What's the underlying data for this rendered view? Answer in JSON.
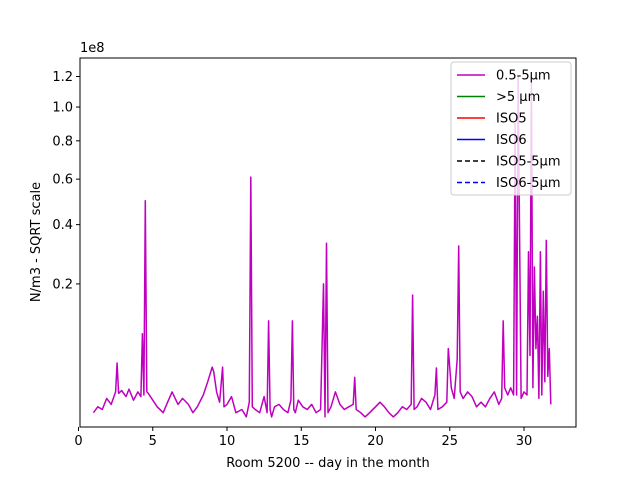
{
  "chart_data": {
    "type": "line",
    "title": "",
    "xlabel": "Room 5200 -- day in the month",
    "ylabel": "N/m3 - SQRT scale",
    "y_scale": "sqrt",
    "y_offset_label": "1e8",
    "xlim": [
      0.1,
      33.5
    ],
    "ylim": [
      0,
      1.33
    ],
    "x_ticks": [
      0,
      5,
      10,
      15,
      20,
      25,
      30
    ],
    "x_tick_labels": [
      "0",
      "5",
      "10",
      "15",
      "20",
      "25",
      "30"
    ],
    "y_ticks": [
      0.2,
      0.4,
      0.6,
      0.8,
      1.0,
      1.2
    ],
    "y_tick_labels": [
      "0.2",
      "0.4",
      "0.6",
      "0.8",
      "1.0",
      "1.2"
    ],
    "grid": false,
    "legend_position": "upper right",
    "colors": {
      "s1": "#bf00bf",
      "s2": "#008000",
      "s3": "#ff0000",
      "s4": "#0000ff",
      "s5": "#000000",
      "s6": "#0000ff"
    },
    "series": [
      {
        "name": "0.5-5µm",
        "color": "#bf00bf",
        "style": "solid",
        "x": [
          1.0,
          1.3,
          1.6,
          1.9,
          2.2,
          2.5,
          2.6,
          2.7,
          2.9,
          3.2,
          3.4,
          3.7,
          4.0,
          4.2,
          4.3,
          4.4,
          4.5,
          4.6,
          4.7,
          5.0,
          5.3,
          5.7,
          6.0,
          6.3,
          6.7,
          7.0,
          7.4,
          7.7,
          8.0,
          8.4,
          8.7,
          9.0,
          9.1,
          9.3,
          9.5,
          9.7,
          9.8,
          10.0,
          10.3,
          10.6,
          11.0,
          11.3,
          11.5,
          11.6,
          11.7,
          11.9,
          12.2,
          12.5,
          12.7,
          12.8,
          12.9,
          13.0,
          13.2,
          13.5,
          13.8,
          14.1,
          14.3,
          14.4,
          14.5,
          14.6,
          14.8,
          15.1,
          15.4,
          15.7,
          16.0,
          16.3,
          16.5,
          16.6,
          16.7,
          16.8,
          17.0,
          17.3,
          17.6,
          17.9,
          18.2,
          18.5,
          18.6,
          18.7,
          19.0,
          19.3,
          19.6,
          20.0,
          20.3,
          20.6,
          20.9,
          21.2,
          21.5,
          21.8,
          22.1,
          22.4,
          22.5,
          22.6,
          22.8,
          23.1,
          23.4,
          23.7,
          24.0,
          24.1,
          24.2,
          24.5,
          24.8,
          24.9,
          25.1,
          25.3,
          25.5,
          25.6,
          25.7,
          25.9,
          26.2,
          26.5,
          26.8,
          27.1,
          27.4,
          27.7,
          28.0,
          28.3,
          28.5,
          28.6,
          28.7,
          28.9,
          29.1,
          29.3,
          29.4,
          29.5,
          29.6,
          29.8,
          30.0,
          30.2,
          30.3,
          30.4,
          30.5,
          30.6,
          30.7,
          30.8,
          30.9,
          31.0,
          31.1,
          31.2,
          31.3,
          31.4,
          31.5,
          31.6,
          31.7,
          31.8
        ],
        "y": [
          0.002,
          0.004,
          0.003,
          0.008,
          0.005,
          0.012,
          0.04,
          0.011,
          0.013,
          0.009,
          0.014,
          0.007,
          0.012,
          0.009,
          0.085,
          0.01,
          0.5,
          0.012,
          0.011,
          0.007,
          0.004,
          0.002,
          0.006,
          0.012,
          0.005,
          0.008,
          0.005,
          0.002,
          0.004,
          0.01,
          0.02,
          0.035,
          0.03,
          0.012,
          0.006,
          0.035,
          0.004,
          0.005,
          0.009,
          0.002,
          0.003,
          0.001,
          0.006,
          0.61,
          0.004,
          0.003,
          0.002,
          0.009,
          0.002,
          0.11,
          0.003,
          0.001,
          0.004,
          0.005,
          0.003,
          0.002,
          0.007,
          0.11,
          0.003,
          0.002,
          0.007,
          0.004,
          0.003,
          0.005,
          0.002,
          0.003,
          0.2,
          0.001,
          0.33,
          0.002,
          0.004,
          0.012,
          0.005,
          0.003,
          0.004,
          0.005,
          0.024,
          0.003,
          0.002,
          0.001,
          0.002,
          0.004,
          0.006,
          0.004,
          0.002,
          0.001,
          0.002,
          0.004,
          0.003,
          0.005,
          0.17,
          0.003,
          0.004,
          0.008,
          0.006,
          0.003,
          0.01,
          0.034,
          0.003,
          0.004,
          0.006,
          0.06,
          0.015,
          0.008,
          0.045,
          0.32,
          0.012,
          0.008,
          0.012,
          0.009,
          0.004,
          0.006,
          0.004,
          0.008,
          0.012,
          0.005,
          0.008,
          0.11,
          0.015,
          0.01,
          0.015,
          0.01,
          0.9,
          0.01,
          1.2,
          0.008,
          0.012,
          0.01,
          0.3,
          0.05,
          1.2,
          0.015,
          0.25,
          0.06,
          0.12,
          0.008,
          0.3,
          0.01,
          0.18,
          0.02,
          0.34,
          0.025,
          0.06,
          0.005
        ]
      },
      {
        "name": ">5 µm",
        "color": "#008000",
        "style": "solid",
        "x": [],
        "y": []
      },
      {
        "name": "ISO5",
        "color": "#ff0000",
        "style": "solid",
        "x": [],
        "y": []
      },
      {
        "name": "ISO6",
        "color": "#0000ff",
        "style": "solid",
        "x": [],
        "y": []
      },
      {
        "name": "ISO5-5µm",
        "color": "#000000",
        "style": "dashed",
        "x": [],
        "y": []
      },
      {
        "name": "ISO6-5µm",
        "color": "#0000ff",
        "style": "dashed",
        "x": [],
        "y": []
      }
    ]
  }
}
